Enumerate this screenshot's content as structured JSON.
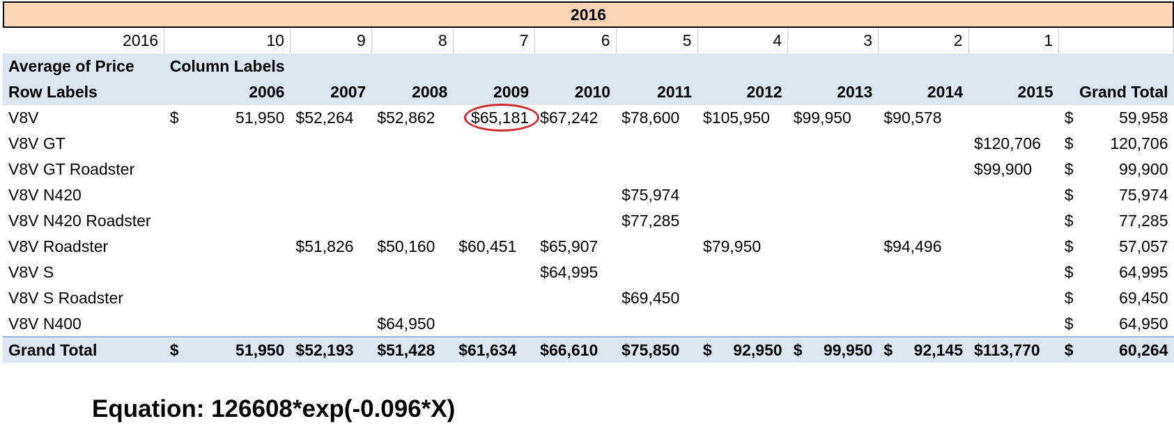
{
  "band_title": "2016",
  "column_numbers": [
    "2016",
    "10",
    "9",
    "8",
    "7",
    "6",
    "5",
    "4",
    "3",
    "2",
    "1",
    ""
  ],
  "header": {
    "values_label": "Average of Price",
    "column_labels": "Column Labels",
    "row_labels": "Row Labels",
    "years": [
      "2006",
      "2007",
      "2008",
      "2009",
      "2010",
      "2011",
      "2012",
      "2013",
      "2014",
      "2015"
    ],
    "grand_total": "Grand Total"
  },
  "currency": "$",
  "rows": [
    {
      "label": "V8V",
      "values": [
        "51,950",
        "52,264",
        "52,862",
        "65,181",
        "67,242",
        "78,600",
        "105,950",
        "99,950",
        "90,578",
        ""
      ],
      "total": "59,958"
    },
    {
      "label": "V8V GT",
      "values": [
        "",
        "",
        "",
        "",
        "",
        "",
        "",
        "",
        "",
        "120,706"
      ],
      "total": "120,706"
    },
    {
      "label": "V8V GT Roadster",
      "values": [
        "",
        "",
        "",
        "",
        "",
        "",
        "",
        "",
        "",
        "99,900"
      ],
      "total": "99,900"
    },
    {
      "label": "V8V N420",
      "values": [
        "",
        "",
        "",
        "",
        "",
        "75,974",
        "",
        "",
        "",
        ""
      ],
      "total": "75,974"
    },
    {
      "label": "V8V N420 Roadster",
      "values": [
        "",
        "",
        "",
        "",
        "",
        "77,285",
        "",
        "",
        "",
        ""
      ],
      "total": "77,285"
    },
    {
      "label": "V8V Roadster",
      "values": [
        "",
        "51,826",
        "50,160",
        "60,451",
        "65,907",
        "",
        "79,950",
        "",
        "94,496",
        ""
      ],
      "total": "57,057"
    },
    {
      "label": "V8V S",
      "values": [
        "",
        "",
        "",
        "",
        "64,995",
        "",
        "",
        "",
        "",
        ""
      ],
      "total": "64,995"
    },
    {
      "label": "V8V S Roadster",
      "values": [
        "",
        "",
        "",
        "",
        "",
        "69,450",
        "",
        "",
        "",
        ""
      ],
      "total": "69,450"
    },
    {
      "label": "V8V N400",
      "values": [
        "",
        "",
        "64,950",
        "",
        "",
        "",
        "",
        "",
        "",
        ""
      ],
      "total": "64,950"
    }
  ],
  "grand_total_row": {
    "label": "Grand Total",
    "values": [
      "51,950",
      "52,193",
      "51,428",
      "61,634",
      "66,610",
      "75,850",
      "92,950",
      "99,950",
      "92,145",
      "113,770"
    ],
    "total": "60,264"
  },
  "highlight": {
    "row": "V8V",
    "year": "2009",
    "color": "#d42a2a"
  },
  "equation": "Equation: 126608*exp(-0.096*X)",
  "colors": {
    "band": "#fcd5b4",
    "header_fill": "#dce6f1",
    "total_border": "#95b3d7"
  }
}
